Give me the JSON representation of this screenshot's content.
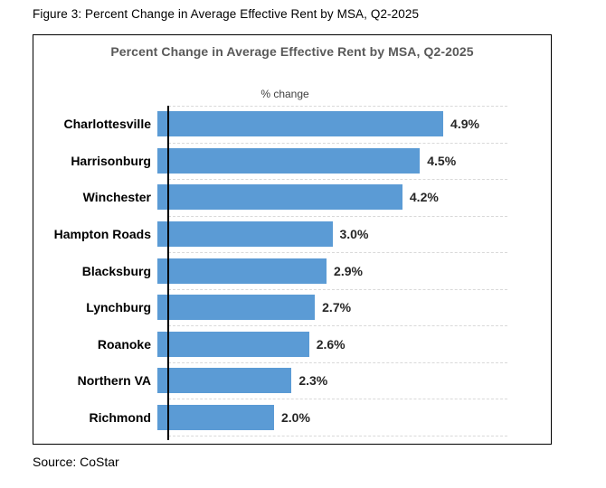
{
  "figure_caption": "Figure 3: Percent Change in Average Effective Rent by MSA, Q2-2025",
  "source_note": "Source: CoStar",
  "chart_data": {
    "type": "bar",
    "orientation": "horizontal",
    "title": "Percent Change in Average Effective Rent by MSA, Q2-2025",
    "axis_title": "% change",
    "categories": [
      "Charlottesville",
      "Harrisonburg",
      "Winchester",
      "Hampton Roads",
      "Blacksburg",
      "Lynchburg",
      "Roanoke",
      "Northern VA",
      "Richmond"
    ],
    "values": [
      4.9,
      4.5,
      4.2,
      3.0,
      2.9,
      2.7,
      2.6,
      2.3,
      2.0
    ],
    "value_labels": [
      "4.9%",
      "4.5%",
      "4.2%",
      "3.0%",
      "2.9%",
      "2.7%",
      "2.6%",
      "2.3%",
      "2.0%"
    ],
    "xlim": [
      0,
      6
    ],
    "legend": "none",
    "grid": "dashed lines at category boundaries",
    "bar_color": "#5B9BD5",
    "gridline_color": "#D9D9D9",
    "title_color": "#595959"
  }
}
